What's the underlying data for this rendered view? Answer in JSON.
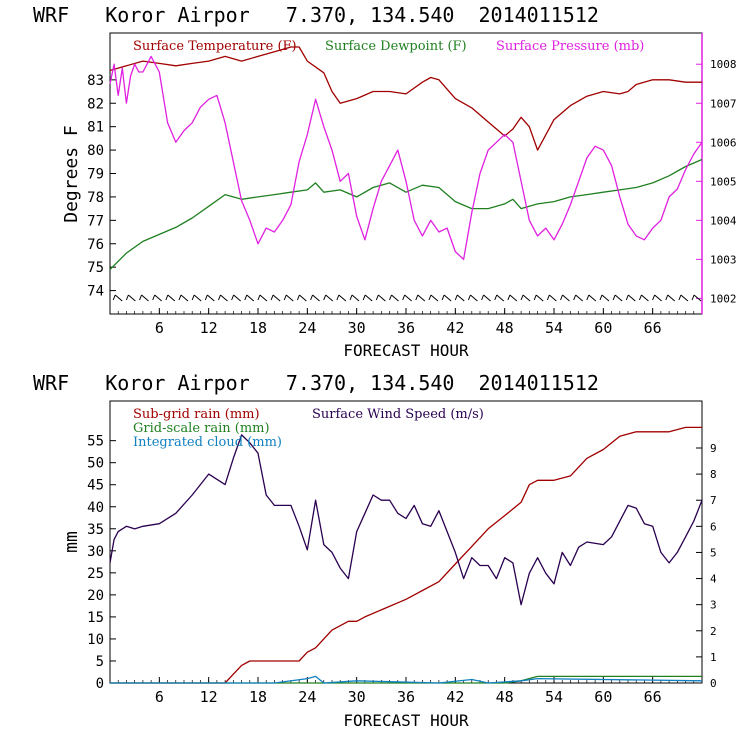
{
  "chart_data": [
    {
      "type": "line",
      "title": "WRF   Koror Airpor   7.370, 134.540  2014011512",
      "xlabel": "FORECAST HOUR",
      "ylabel": "Degrees F",
      "xlim": [
        0,
        72
      ],
      "x_ticks": [
        6,
        12,
        18,
        24,
        30,
        36,
        42,
        48,
        54,
        60,
        66
      ],
      "ylim_left": [
        73,
        85
      ],
      "y_ticks_left": [
        74,
        75,
        76,
        77,
        78,
        79,
        80,
        81,
        82,
        83
      ],
      "ylim_right": [
        1001.6,
        1008.8
      ],
      "y_ticks_right": [
        1002,
        1003,
        1004,
        1005,
        1006,
        1007,
        1008
      ],
      "series": [
        {
          "name": "Surface Temperature (F)",
          "color": "#a00000",
          "axis": "left",
          "x": [
            0,
            2,
            4,
            6,
            8,
            10,
            12,
            14,
            16,
            18,
            20,
            22,
            23,
            24,
            26,
            27,
            28,
            30,
            32,
            34,
            36,
            38,
            39,
            40,
            42,
            44,
            46,
            48,
            49,
            50,
            51,
            52,
            54,
            56,
            58,
            60,
            62,
            63,
            64,
            66,
            68,
            70,
            72
          ],
          "y": [
            83.4,
            83.6,
            83.8,
            83.7,
            83.6,
            83.7,
            83.8,
            84.0,
            83.8,
            84.0,
            84.2,
            84.4,
            84.4,
            83.8,
            83.3,
            82.5,
            82.0,
            82.2,
            82.5,
            82.5,
            82.4,
            82.9,
            83.1,
            83.0,
            82.2,
            81.8,
            81.2,
            80.6,
            80.9,
            81.4,
            81.0,
            80.0,
            81.3,
            81.9,
            82.3,
            82.5,
            82.4,
            82.5,
            82.8,
            83.0,
            83.0,
            82.9,
            82.9
          ]
        },
        {
          "name": "Surface Dewpoint (F)",
          "color": "#208020",
          "axis": "left",
          "x": [
            0,
            2,
            4,
            6,
            8,
            10,
            12,
            14,
            16,
            18,
            20,
            22,
            24,
            25,
            26,
            28,
            30,
            32,
            34,
            36,
            38,
            40,
            42,
            44,
            45,
            46,
            48,
            49,
            50,
            51,
            52,
            54,
            56,
            58,
            60,
            62,
            64,
            66,
            68,
            70,
            72
          ],
          "y": [
            74.9,
            75.6,
            76.1,
            76.4,
            76.7,
            77.1,
            77.6,
            78.1,
            77.9,
            78.0,
            78.1,
            78.2,
            78.3,
            78.6,
            78.2,
            78.3,
            78.0,
            78.4,
            78.6,
            78.2,
            78.5,
            78.4,
            77.8,
            77.5,
            77.5,
            77.5,
            77.7,
            77.9,
            77.5,
            77.6,
            77.7,
            77.8,
            78.0,
            78.1,
            78.2,
            78.3,
            78.4,
            78.6,
            78.9,
            79.3,
            79.6
          ]
        },
        {
          "name": "Surface Pressure (mb)",
          "color": "#e020e0",
          "axis": "right",
          "x": [
            0,
            0.5,
            1,
            1.5,
            2,
            2.5,
            3,
            3.5,
            4,
            5,
            6,
            7,
            8,
            9,
            10,
            11,
            12,
            13,
            14,
            15,
            16,
            17,
            18,
            19,
            20,
            21,
            22,
            23,
            24,
            25,
            26,
            27,
            28,
            29,
            30,
            31,
            32,
            33,
            34,
            35,
            36,
            37,
            38,
            39,
            40,
            41,
            42,
            43,
            44,
            45,
            46,
            47,
            48,
            49,
            50,
            51,
            52,
            53,
            54,
            55,
            56,
            57,
            58,
            59,
            60,
            61,
            62,
            63,
            64,
            65,
            66,
            67,
            68,
            69,
            70,
            71,
            72
          ],
          "y": [
            1007.5,
            1008.0,
            1007.2,
            1007.9,
            1007.0,
            1007.7,
            1008.0,
            1007.8,
            1007.8,
            1008.2,
            1007.8,
            1006.5,
            1006.0,
            1006.3,
            1006.5,
            1006.9,
            1007.1,
            1007.2,
            1006.5,
            1005.5,
            1004.5,
            1004.0,
            1003.4,
            1003.8,
            1003.7,
            1004.0,
            1004.4,
            1005.5,
            1006.2,
            1007.1,
            1006.4,
            1005.8,
            1005.0,
            1005.2,
            1004.1,
            1003.5,
            1004.3,
            1005.0,
            1005.4,
            1005.8,
            1005.0,
            1004.0,
            1003.6,
            1004.0,
            1003.7,
            1003.8,
            1003.2,
            1003.0,
            1004.2,
            1005.2,
            1005.8,
            1006.0,
            1006.2,
            1006.0,
            1005.0,
            1004.0,
            1003.6,
            1003.8,
            1003.5,
            1003.9,
            1004.4,
            1005.0,
            1005.6,
            1005.9,
            1005.8,
            1005.4,
            1004.6,
            1003.9,
            1003.6,
            1003.5,
            1003.8,
            1004.0,
            1004.6,
            1004.8,
            1005.3,
            1005.7,
            1006.0
          ]
        }
      ]
    },
    {
      "type": "line",
      "title": "WRF   Koror Airpor   7.370, 134.540  2014011512",
      "xlabel": "FORECAST HOUR",
      "ylabel": "mm",
      "xlim": [
        0,
        72
      ],
      "x_ticks": [
        6,
        12,
        18,
        24,
        30,
        36,
        42,
        48,
        54,
        60,
        66
      ],
      "ylim_left": [
        0,
        64
      ],
      "y_ticks_left": [
        0,
        5,
        10,
        15,
        20,
        25,
        30,
        35,
        40,
        45,
        50,
        55
      ],
      "ylim_right": [
        0,
        10.8
      ],
      "y_ticks_right": [
        0,
        1,
        2,
        3,
        4,
        5,
        6,
        7,
        8,
        9
      ],
      "series": [
        {
          "name": "Sub-grid rain (mm)",
          "color": "#a00000",
          "axis": "left",
          "x": [
            0,
            14,
            15,
            16,
            17,
            22,
            23,
            24,
            25,
            26,
            27,
            28,
            29,
            30,
            31,
            36,
            37,
            38,
            40,
            42,
            44,
            46,
            48,
            50,
            51,
            52,
            54,
            56,
            58,
            60,
            62,
            64,
            66,
            68,
            70,
            72
          ],
          "y": [
            0,
            0,
            2,
            4,
            5,
            5,
            5,
            7,
            8,
            10,
            12,
            13,
            14,
            14,
            15,
            19,
            20,
            21,
            23,
            27,
            31,
            35,
            38,
            41,
            45,
            46,
            46,
            47,
            51,
            53,
            56,
            57,
            57,
            57,
            58,
            58
          ]
        },
        {
          "name": "Surface Wind Speed (m/s)",
          "color": "#2a0050",
          "axis": "right",
          "x": [
            0,
            0.5,
            1,
            2,
            3,
            4,
            6,
            8,
            10,
            12,
            14,
            15,
            16,
            17,
            18,
            19,
            20,
            22,
            23,
            24,
            25,
            26,
            27,
            28,
            29,
            30,
            31,
            32,
            33,
            34,
            35,
            36,
            37,
            38,
            39,
            40,
            42,
            43,
            44,
            45,
            46,
            47,
            48,
            49,
            50,
            51,
            52,
            53,
            54,
            55,
            56,
            57,
            58,
            60,
            61,
            62,
            63,
            64,
            65,
            66,
            67,
            68,
            69,
            70,
            71,
            72
          ],
          "y": [
            4.6,
            5.5,
            5.8,
            6.0,
            5.9,
            6.0,
            6.1,
            6.5,
            7.2,
            8.0,
            7.6,
            8.6,
            9.5,
            9.2,
            8.8,
            7.2,
            6.8,
            6.8,
            6.0,
            5.1,
            7.0,
            5.3,
            5.0,
            4.4,
            4.0,
            5.8,
            6.5,
            7.2,
            7.0,
            7.0,
            6.5,
            6.3,
            6.8,
            6.1,
            6.0,
            6.6,
            5.0,
            4.0,
            4.8,
            4.5,
            4.5,
            4.0,
            4.8,
            4.6,
            3.0,
            4.2,
            4.8,
            4.2,
            3.8,
            5.0,
            4.5,
            5.2,
            5.4,
            5.3,
            5.6,
            6.2,
            6.8,
            6.7,
            6.1,
            6.0,
            5.0,
            4.6,
            5.0,
            5.6,
            6.2,
            7.0
          ]
        },
        {
          "name": "Grid-scale rain (mm)",
          "color": "#208020",
          "axis": "left",
          "x": [
            0,
            48,
            50,
            52,
            72
          ],
          "y": [
            0,
            0,
            0.5,
            1.5,
            1.5
          ]
        },
        {
          "name": "Integrated cloud (mm)",
          "color": "#1080c0",
          "axis": "left",
          "x": [
            0,
            20,
            24,
            25,
            26,
            30,
            40,
            44,
            46,
            50,
            52,
            72
          ],
          "y": [
            0,
            0,
            1,
            1.5,
            0,
            0.5,
            0,
            0.8,
            0,
            0.5,
            1.0,
            0.5
          ]
        }
      ]
    }
  ]
}
